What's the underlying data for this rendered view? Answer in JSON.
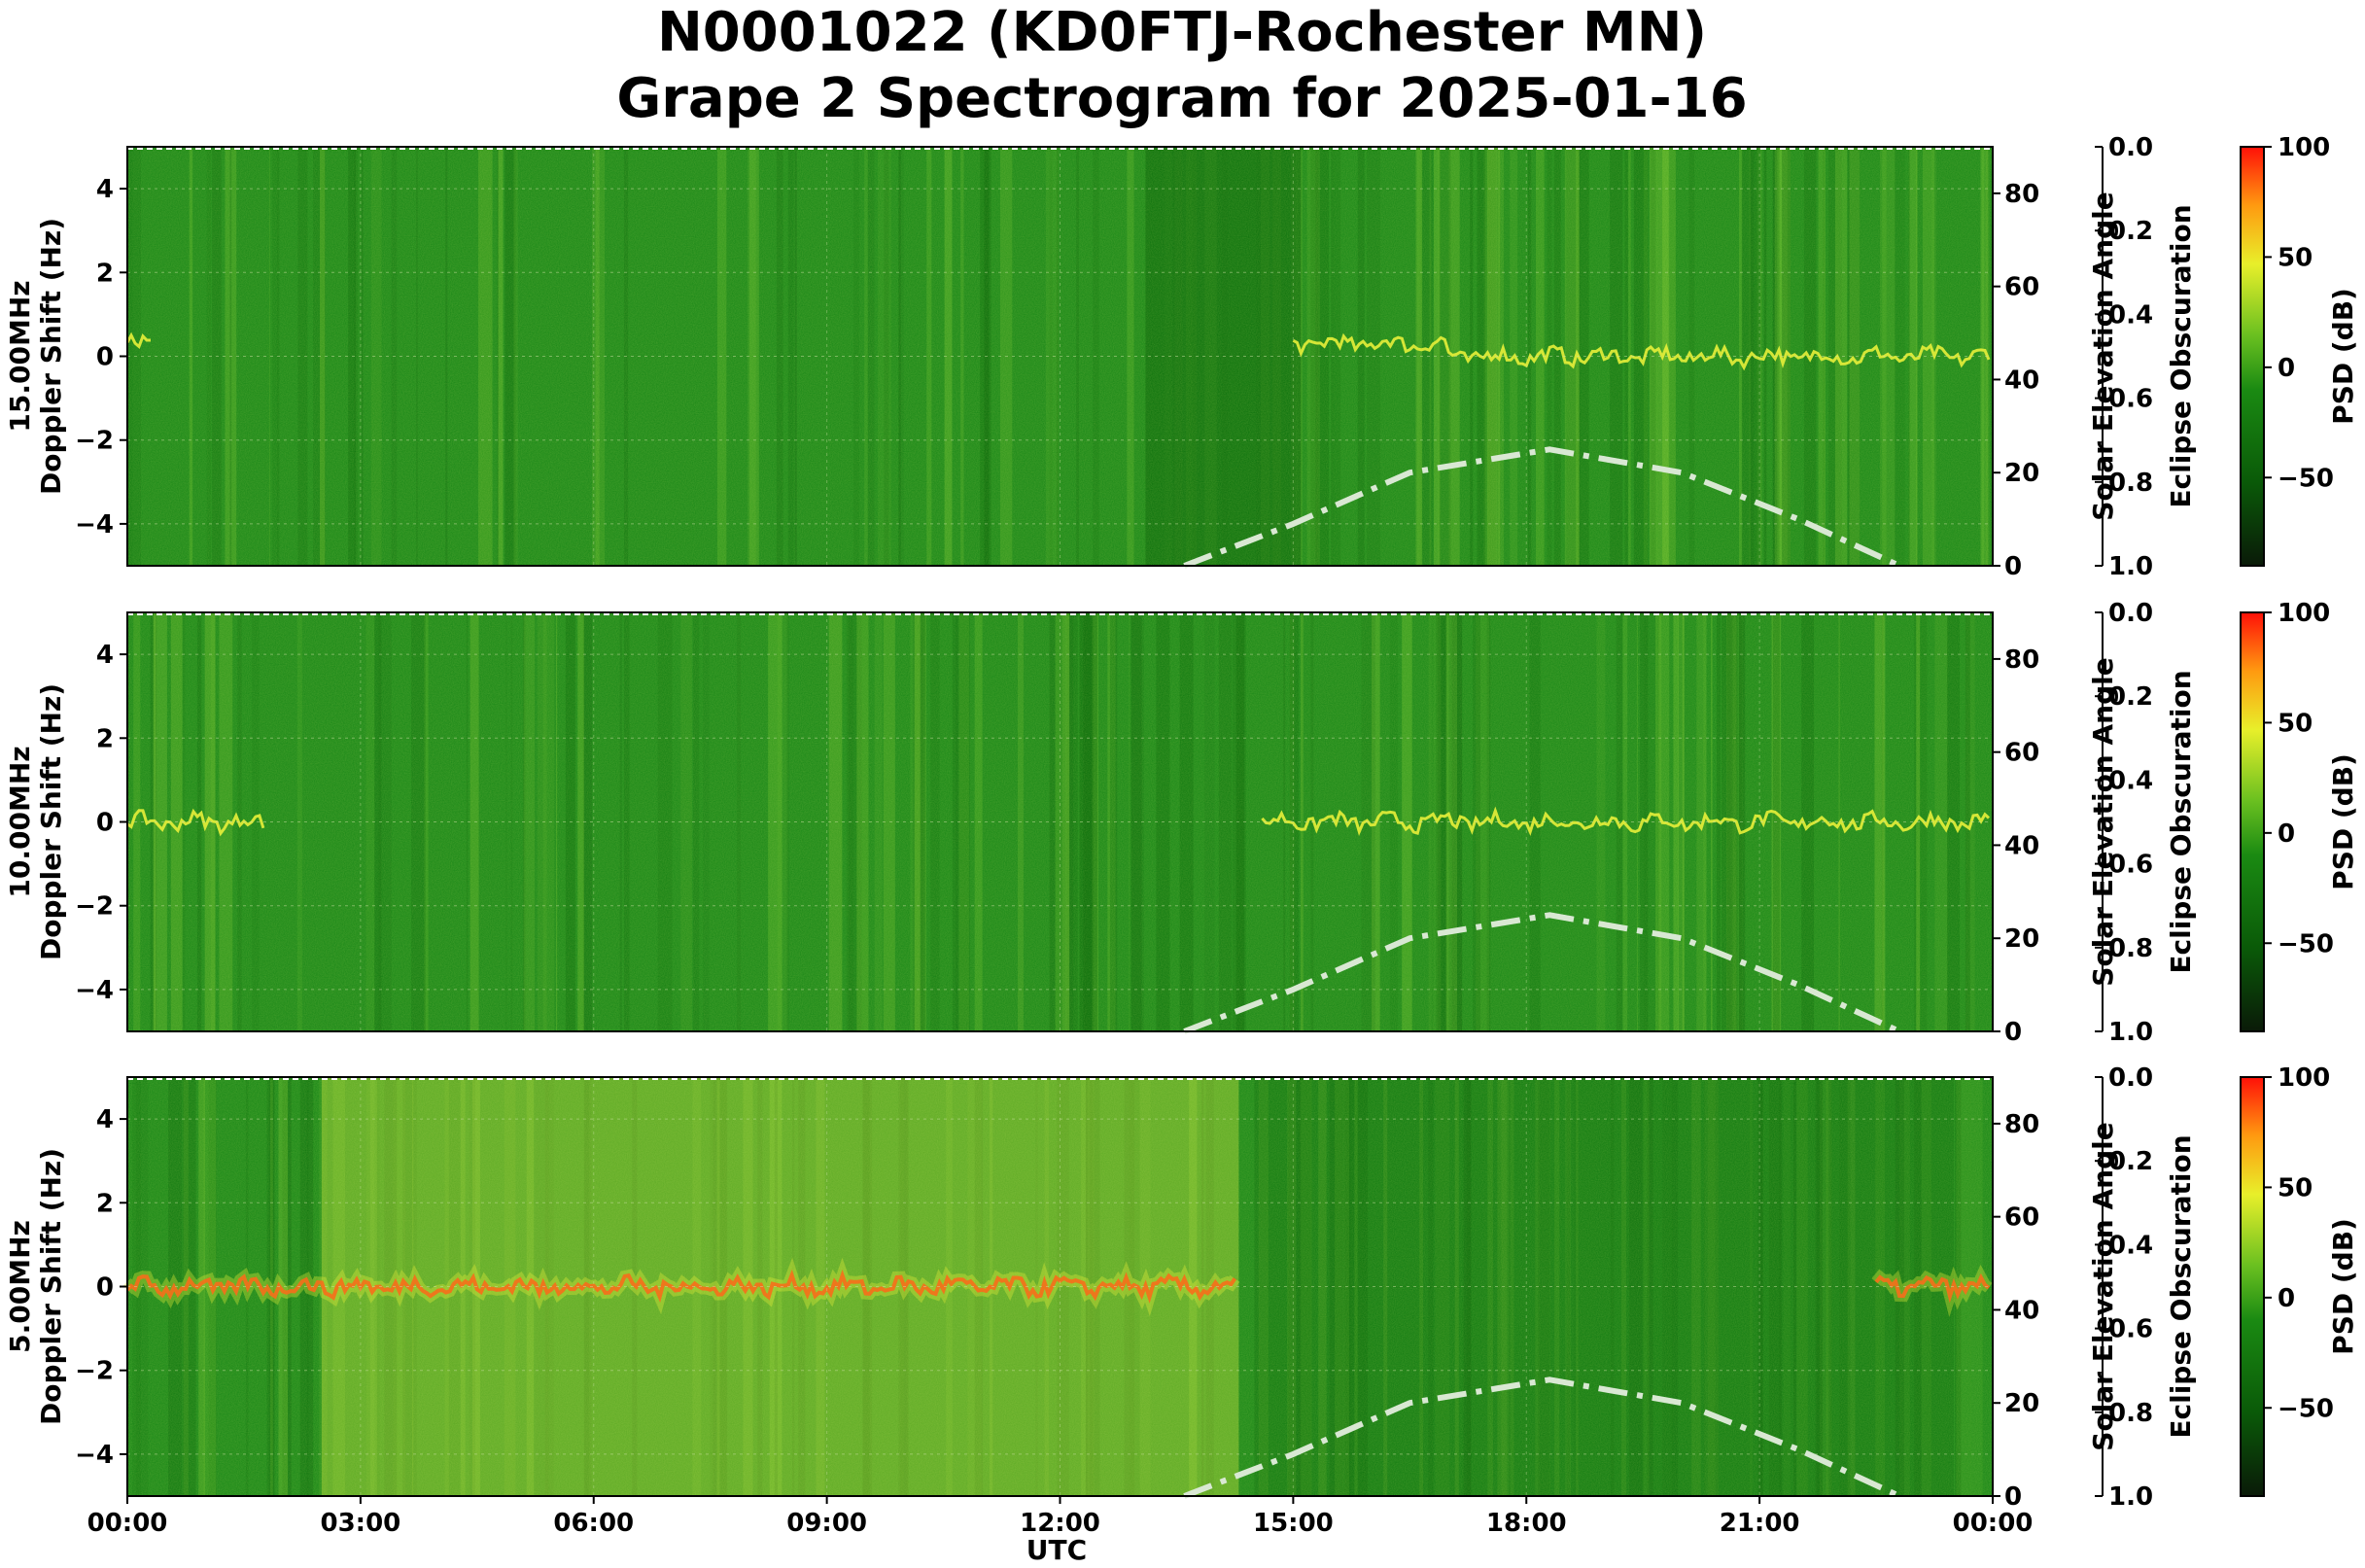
{
  "title": {
    "line1": "N0001022 (KD0FTJ-Rochester MN)",
    "line2": "Grape 2 Spectrogram for 2025-01-16"
  },
  "colors": {
    "background_green": "#1e8a1a",
    "dark_green": "#0d6e0d",
    "yellow": "#e8ef3a",
    "red": "#ff2a0a",
    "solar_curve": "#d9e8d3"
  },
  "chart_data": [
    {
      "type": "heatmap",
      "frequency_label": "15.00MHz",
      "ylabel": "Doppler Shift (Hz)",
      "ylim": [
        -5,
        5
      ],
      "yticks": [
        "4",
        "2",
        "0",
        "−2",
        "−4"
      ],
      "right_axis": {
        "label": "Solar Elevation Angle",
        "ylim": [
          0,
          90
        ],
        "ticks": [
          "0",
          "20",
          "40",
          "60",
          "80"
        ]
      },
      "eclipse_axis": {
        "label": "Eclipse Obscuration",
        "ylim": [
          1.0,
          0.0
        ],
        "ticks": [
          "0.0",
          "0.2",
          "0.4",
          "0.6",
          "0.8",
          "1.0"
        ]
      },
      "colorbar": {
        "label": "PSD (dB)",
        "ticks": [
          "100",
          "50",
          "0",
          "−50"
        ],
        "range": [
          -90,
          100
        ]
      },
      "solar_elevation": {
        "x_hours": [
          13.6,
          15,
          16.5,
          18.3,
          20,
          21.5,
          22.8
        ],
        "values": [
          0,
          9,
          20,
          25,
          20,
          10,
          0
        ]
      }
    },
    {
      "type": "heatmap",
      "frequency_label": "10.00MHz",
      "ylabel": "Doppler Shift (Hz)",
      "ylim": [
        -5,
        5
      ],
      "yticks": [
        "4",
        "2",
        "0",
        "−2",
        "−4"
      ],
      "right_axis": {
        "label": "Solar Elevation Angle",
        "ylim": [
          0,
          90
        ],
        "ticks": [
          "0",
          "20",
          "40",
          "60",
          "80"
        ]
      },
      "eclipse_axis": {
        "label": "Eclipse Obscuration",
        "ylim": [
          1.0,
          0.0
        ],
        "ticks": [
          "0.0",
          "0.2",
          "0.4",
          "0.6",
          "0.8",
          "1.0"
        ]
      },
      "colorbar": {
        "label": "PSD (dB)",
        "ticks": [
          "100",
          "50",
          "0",
          "−50"
        ],
        "range": [
          -90,
          100
        ]
      },
      "solar_elevation": {
        "x_hours": [
          13.6,
          15,
          16.5,
          18.3,
          20,
          21.5,
          22.8
        ],
        "values": [
          0,
          9,
          20,
          25,
          20,
          10,
          0
        ]
      }
    },
    {
      "type": "heatmap",
      "frequency_label": "5.00MHz",
      "ylabel": "Doppler Shift (Hz)",
      "ylim": [
        -5,
        5
      ],
      "yticks": [
        "4",
        "2",
        "0",
        "−2",
        "−4"
      ],
      "right_axis": {
        "label": "Solar Elevation Angle",
        "ylim": [
          0,
          90
        ],
        "ticks": [
          "0",
          "20",
          "40",
          "60",
          "80"
        ]
      },
      "eclipse_axis": {
        "label": "Eclipse Obscuration",
        "ylim": [
          1.0,
          0.0
        ],
        "ticks": [
          "0.0",
          "0.2",
          "0.4",
          "0.6",
          "0.8",
          "1.0"
        ]
      },
      "colorbar": {
        "label": "PSD (dB)",
        "ticks": [
          "100",
          "50",
          "0",
          "−50"
        ],
        "range": [
          -90,
          100
        ]
      },
      "solar_elevation": {
        "x_hours": [
          13.6,
          15,
          16.5,
          18.3,
          20,
          21.5,
          22.8
        ],
        "values": [
          0,
          9,
          20,
          25,
          20,
          10,
          0
        ]
      }
    }
  ],
  "xaxis": {
    "label": "UTC",
    "ticks": [
      "00:00",
      "03:00",
      "06:00",
      "09:00",
      "12:00",
      "15:00",
      "18:00",
      "21:00",
      "00:00"
    ]
  }
}
